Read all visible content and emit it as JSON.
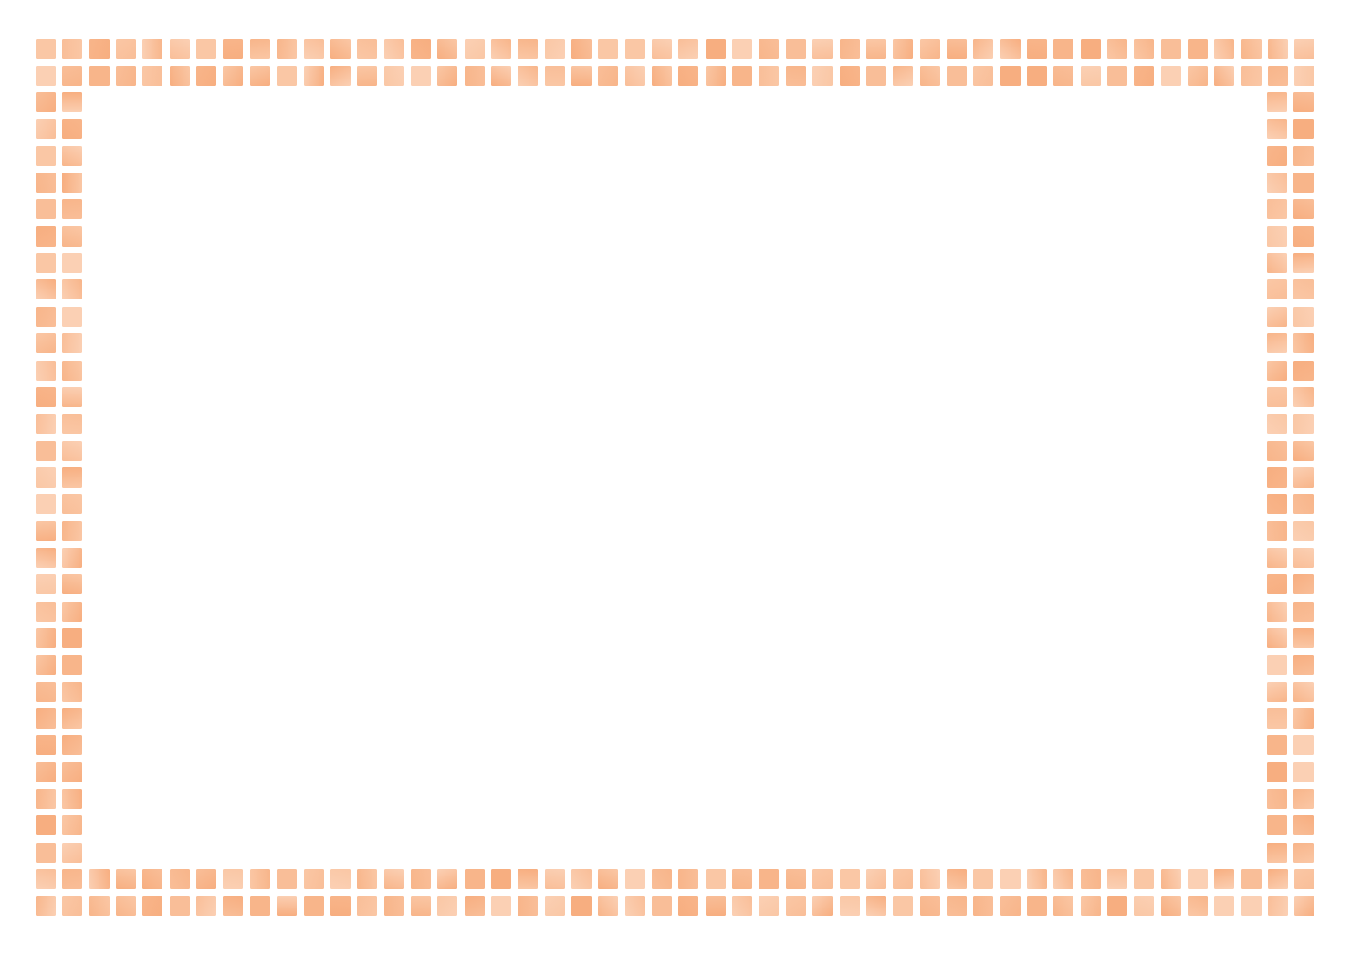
{
  "frame": {
    "style": "two-row square tile border",
    "colors": [
      "#F8B58A",
      "#F9BE98",
      "#FAC7A5",
      "#FBD0B4",
      "#F7AE80"
    ],
    "center": "empty"
  }
}
